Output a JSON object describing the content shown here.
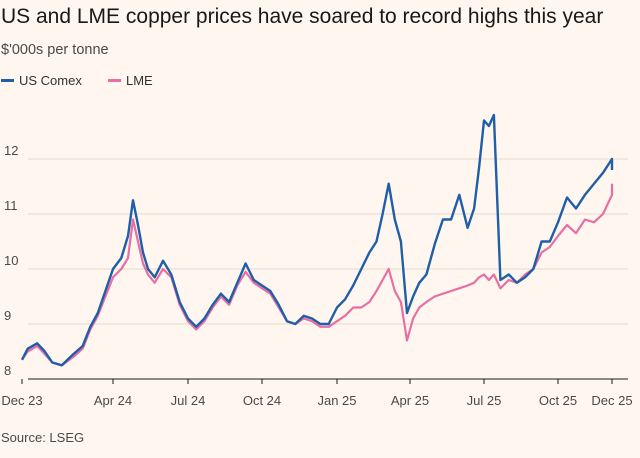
{
  "header": {
    "title": "US and LME copper prices have soared to record highs this year",
    "subtitle": "$'000s per tonne"
  },
  "legend": [
    {
      "label": "US Comex",
      "color": "#1f5ea8"
    },
    {
      "label": "LME",
      "color": "#e86fa3"
    }
  ],
  "footer": {
    "source": "Source: LSEG"
  },
  "colors": {
    "background": "#fff7ef",
    "grid": "#e6d9ce",
    "axis": "#1a1817"
  },
  "chart_data": {
    "type": "line",
    "xlabel": "",
    "ylabel": "",
    "ylim": [
      8,
      13
    ],
    "yticks": [
      8,
      9,
      10,
      11,
      12
    ],
    "grid": true,
    "legend_position": "top-left",
    "x_ticks": [
      "Dec 23",
      "Apr 24",
      "Jul 24",
      "Oct 24",
      "Jan 25",
      "Apr 25",
      "Jul 25",
      "Oct 25",
      "Dec 25"
    ],
    "series": [
      {
        "name": "US Comex",
        "color": "#1f5ea8",
        "x": [
          "Dec 23",
          "Dec 23",
          "Jan 24",
          "Jan 24",
          "Jan 24",
          "Feb 24",
          "Feb 24",
          "Mar 24",
          "Mar 24",
          "Mar 24",
          "Apr 24",
          "Apr 24",
          "Apr 24",
          "May 24",
          "May 24",
          "May 24",
          "May 24",
          "May 24",
          "Jun 24",
          "Jun 24",
          "Jun 24",
          "Jul 24",
          "Jul 24",
          "Jul 24",
          "Aug 24",
          "Aug 24",
          "Aug 24",
          "Sep 24",
          "Sep 24",
          "Sep 24",
          "Oct 24",
          "Oct 24",
          "Oct 24",
          "Nov 24",
          "Nov 24",
          "Nov 24",
          "Dec 24",
          "Dec 24",
          "Dec 24",
          "Jan 25",
          "Jan 25",
          "Jan 25",
          "Feb 25",
          "Feb 25",
          "Feb 25",
          "Mar 25",
          "Mar 25",
          "Mar 25",
          "Mar 25",
          "Apr 25",
          "Apr 25",
          "Apr 25",
          "Apr 25",
          "May 25",
          "May 25",
          "May 25",
          "Jun 25",
          "Jun 25",
          "Jun 25",
          "Jul 25",
          "Jul 25",
          "Jul 25",
          "Jul 25",
          "Jul 25",
          "Aug 25",
          "Aug 25",
          "Aug 25",
          "Sep 25",
          "Sep 25",
          "Sep 25",
          "Oct 25",
          "Oct 25",
          "Oct 25",
          "Nov 25",
          "Nov 25",
          "Nov 25",
          "Dec 25",
          "Dec 25",
          "Dec 25"
        ],
        "y": [
          8.35,
          8.55,
          8.65,
          8.5,
          8.3,
          8.25,
          8.45,
          8.6,
          8.95,
          9.2,
          9.6,
          10.0,
          10.2,
          10.6,
          11.25,
          10.8,
          10.3,
          10.0,
          9.85,
          10.15,
          9.9,
          9.4,
          9.1,
          8.95,
          9.1,
          9.35,
          9.55,
          9.4,
          9.75,
          10.1,
          9.8,
          9.7,
          9.6,
          9.35,
          9.05,
          9.0,
          9.15,
          9.1,
          9.0,
          9.0,
          9.3,
          9.45,
          9.7,
          10.0,
          10.3,
          10.5,
          11.0,
          11.55,
          10.9,
          10.5,
          9.2,
          9.5,
          9.75,
          9.9,
          10.45,
          10.9,
          10.9,
          11.35,
          10.75,
          11.1,
          11.85,
          12.7,
          12.6,
          12.8,
          9.8,
          9.9,
          9.75,
          9.85,
          10.0,
          10.5,
          10.5,
          10.85,
          11.3,
          11.1,
          11.35,
          11.55,
          11.75,
          12.0,
          11.8
        ],
        "note": "x positions follow date labels"
      },
      {
        "name": "LME",
        "color": "#e86fa3",
        "x": [
          "Dec 23",
          "Dec 23",
          "Jan 24",
          "Jan 24",
          "Jan 24",
          "Feb 24",
          "Feb 24",
          "Mar 24",
          "Mar 24",
          "Mar 24",
          "Apr 24",
          "Apr 24",
          "Apr 24",
          "May 24",
          "May 24",
          "May 24",
          "May 24",
          "May 24",
          "Jun 24",
          "Jun 24",
          "Jun 24",
          "Jul 24",
          "Jul 24",
          "Jul 24",
          "Aug 24",
          "Aug 24",
          "Aug 24",
          "Sep 24",
          "Sep 24",
          "Sep 24",
          "Oct 24",
          "Oct 24",
          "Oct 24",
          "Nov 24",
          "Nov 24",
          "Nov 24",
          "Dec 24",
          "Dec 24",
          "Dec 24",
          "Jan 25",
          "Jan 25",
          "Jan 25",
          "Feb 25",
          "Feb 25",
          "Feb 25",
          "Mar 25",
          "Mar 25",
          "Mar 25",
          "Mar 25",
          "Apr 25",
          "Apr 25",
          "Apr 25",
          "Apr 25",
          "May 25",
          "May 25",
          "May 25",
          "Jun 25",
          "Jun 25",
          "Jun 25",
          "Jul 25",
          "Jul 25",
          "Jul 25",
          "Jul 25",
          "Jul 25",
          "Aug 25",
          "Aug 25",
          "Aug 25",
          "Sep 25",
          "Sep 25",
          "Sep 25",
          "Oct 25",
          "Oct 25",
          "Oct 25",
          "Nov 25",
          "Nov 25",
          "Nov 25",
          "Dec 25",
          "Dec 25",
          "Dec 25"
        ],
        "y": [
          8.35,
          8.5,
          8.6,
          8.45,
          8.3,
          8.25,
          8.4,
          8.55,
          8.9,
          9.15,
          9.5,
          9.85,
          10.0,
          10.2,
          10.9,
          10.5,
          10.1,
          9.9,
          9.75,
          10.0,
          9.85,
          9.35,
          9.05,
          8.9,
          9.05,
          9.3,
          9.5,
          9.35,
          9.7,
          9.95,
          9.75,
          9.65,
          9.55,
          9.3,
          9.05,
          9.0,
          9.1,
          9.05,
          8.95,
          8.95,
          9.05,
          9.15,
          9.3,
          9.3,
          9.4,
          9.6,
          9.8,
          10.0,
          9.6,
          9.4,
          8.7,
          9.1,
          9.3,
          9.4,
          9.5,
          9.55,
          9.6,
          9.65,
          9.7,
          9.75,
          9.85,
          9.9,
          9.8,
          9.9,
          9.65,
          9.8,
          9.75,
          9.9,
          10.0,
          10.3,
          10.4,
          10.6,
          10.8,
          10.65,
          10.9,
          10.85,
          11.0,
          11.35,
          11.55
        ],
        "note": "x positions follow date labels"
      }
    ]
  }
}
